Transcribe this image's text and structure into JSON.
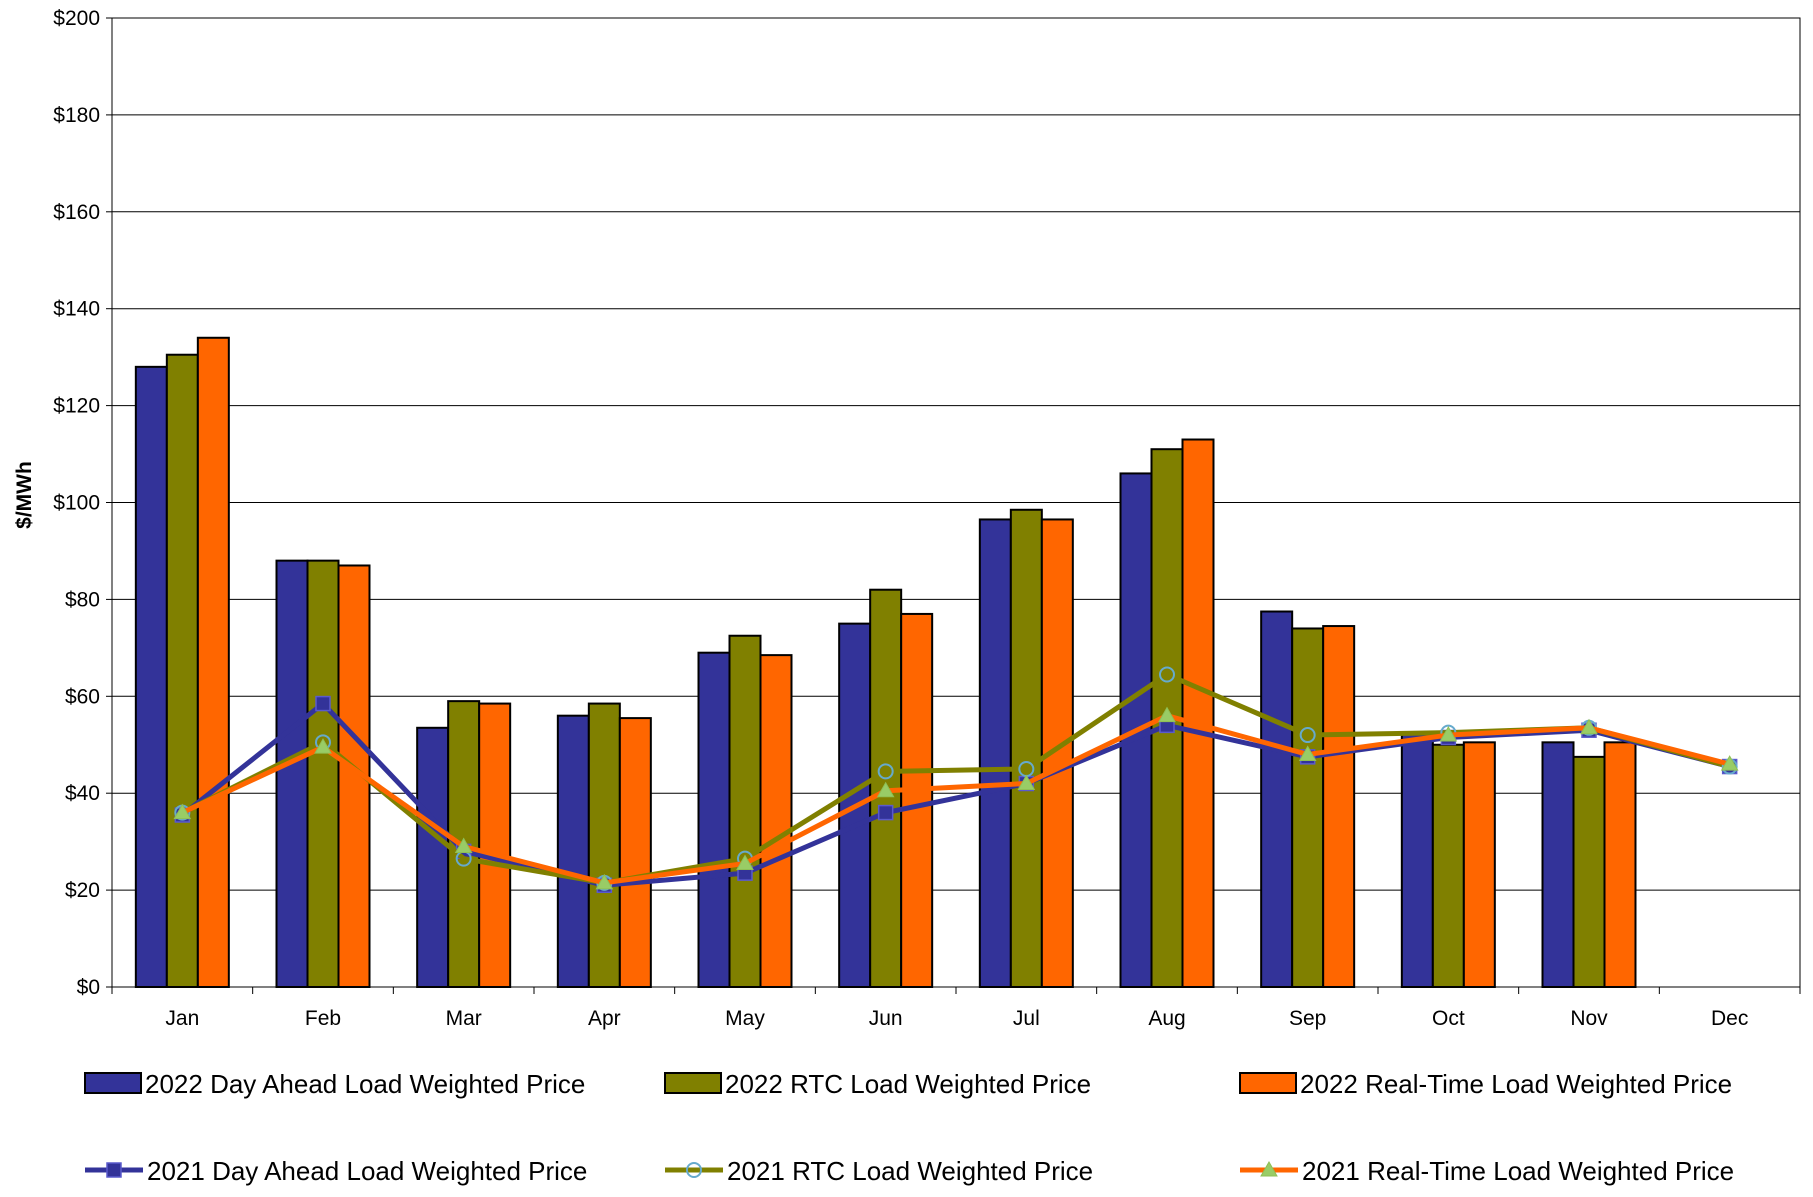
{
  "chart_data": {
    "type": "bar",
    "ylabel": "$/MWh",
    "ylim": [
      0,
      200
    ],
    "ytick_step": 20,
    "ytick_labels": [
      "$0",
      "$20",
      "$40",
      "$60",
      "$80",
      "$100",
      "$120",
      "$140",
      "$160",
      "$180",
      "$200"
    ],
    "grid": true,
    "legend_position": "bottom",
    "categories": [
      "Jan",
      "Feb",
      "Mar",
      "Apr",
      "May",
      "Jun",
      "Jul",
      "Aug",
      "Sep",
      "Oct",
      "Nov",
      "Dec"
    ],
    "bar_series": [
      {
        "name": "2022 Day Ahead Load Weighted Price",
        "color": "#333399",
        "values": [
          128,
          88,
          53.5,
          56,
          69,
          75,
          96.5,
          106,
          77.5,
          52.5,
          50.5,
          null
        ]
      },
      {
        "name": "2022 RTC Load Weighted Price",
        "color": "#808000",
        "values": [
          130.5,
          88,
          59,
          58.5,
          72.5,
          82,
          98.5,
          111,
          74,
          50,
          47.5,
          null
        ]
      },
      {
        "name": "2022 Real-Time Load Weighted Price",
        "color": "#FF6600",
        "values": [
          134,
          87,
          58.5,
          55.5,
          68.5,
          77,
          96.5,
          113,
          74.5,
          50.5,
          50.5,
          null
        ]
      }
    ],
    "line_series": [
      {
        "name": "2021 Day Ahead Load Weighted Price",
        "color": "#333399",
        "marker": "square",
        "values": [
          35.5,
          58.5,
          28,
          21,
          23.5,
          36,
          42,
          54,
          47.5,
          51.5,
          53,
          45.5
        ]
      },
      {
        "name": "2021 RTC Load Weighted Price",
        "color": "#808000",
        "marker": "circle",
        "values": [
          36,
          50.5,
          26.5,
          21.5,
          26.5,
          44.5,
          45,
          64.5,
          52,
          52.5,
          53.5,
          45.5
        ]
      },
      {
        "name": "2021 Real-Time Load Weighted Price",
        "color": "#FF6600",
        "marker": "triangle",
        "values": [
          36,
          49.5,
          29,
          21.5,
          25.5,
          40.5,
          42,
          56,
          48,
          52,
          53.5,
          46
        ]
      }
    ]
  }
}
